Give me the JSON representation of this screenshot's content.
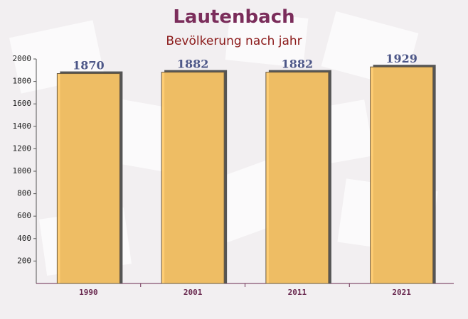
{
  "chart_data": {
    "type": "bar",
    "title": "Lautenbach",
    "subtitle": "Bevölkerung nach jahr",
    "categories": [
      "1990",
      "2001",
      "2011",
      "2021"
    ],
    "values": [
      1870,
      1882,
      1882,
      1929
    ],
    "color": "#ffc966",
    "ylim": [
      0,
      2000
    ],
    "yticks": [
      200,
      400,
      600,
      800,
      1000,
      1200,
      1400,
      1600,
      1800,
      2000
    ]
  }
}
